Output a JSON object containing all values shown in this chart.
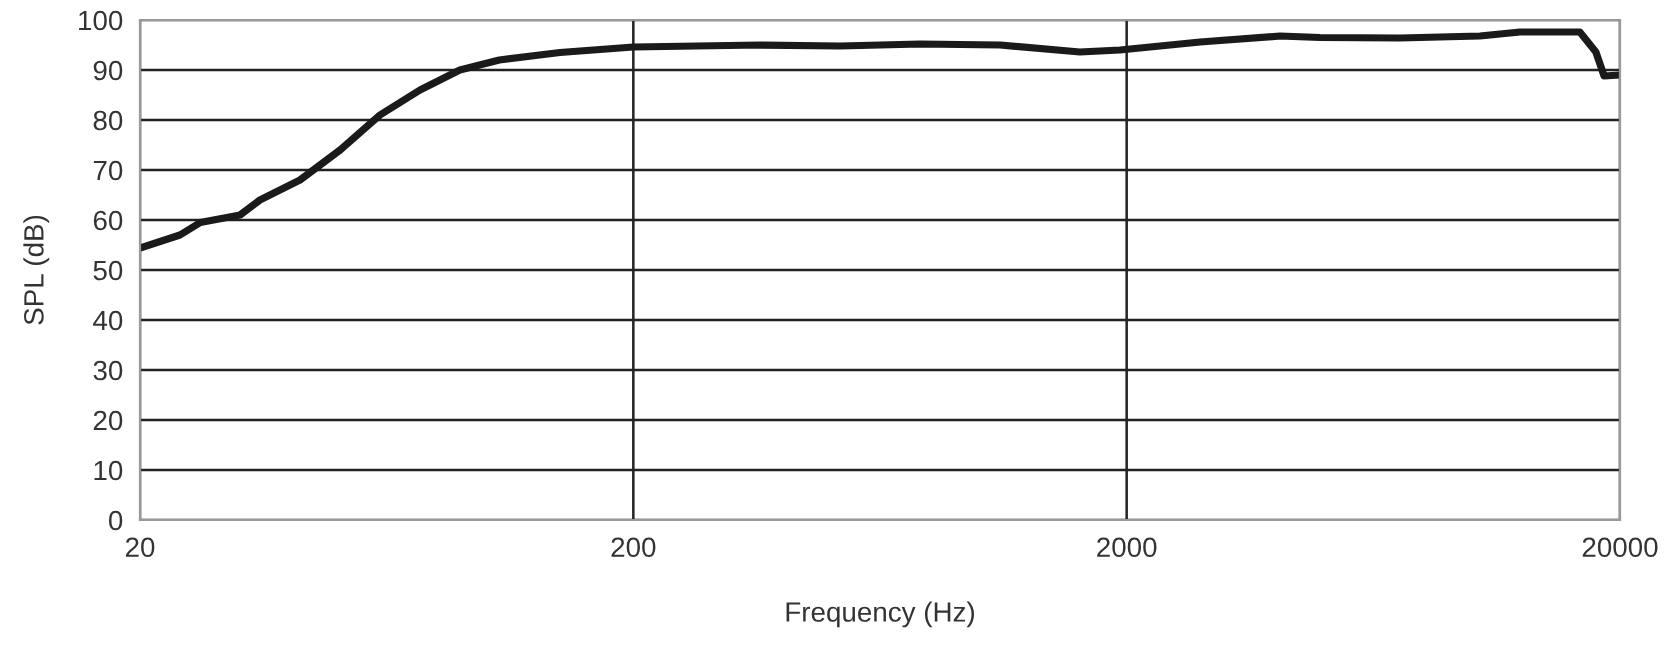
{
  "chart_data": {
    "type": "line",
    "xlabel": "Frequency (Hz)",
    "ylabel": "SPL (dB)",
    "log": "x",
    "xlim": [
      20,
      20000
    ],
    "xticks": [
      20,
      200,
      2000,
      20000
    ],
    "ylim": [
      0,
      100
    ],
    "yticks": [
      0,
      10,
      20,
      30,
      40,
      50,
      60,
      70,
      80,
      90,
      100
    ],
    "grid": true,
    "line_style": "solid",
    "marker": "none",
    "series": [
      {
        "color": "#1a1a1a",
        "x": [
          20,
          24.1,
          26.5,
          31.9,
          35,
          42.2,
          50.9,
          61.3,
          73.9,
          89,
          107,
          142,
          200,
          361,
          525,
          762,
          1108,
          1608,
          1938,
          2818,
          4092,
          4932,
          7160,
          10400,
          12540,
          16580,
          17870,
          18570,
          20000
        ],
        "values": [
          54.4,
          57,
          59.5,
          61,
          64,
          68,
          74,
          81,
          86,
          90,
          92,
          93.5,
          94.6,
          95,
          94.8,
          95.2,
          95,
          93.6,
          94,
          95.6,
          96.8,
          96.5,
          96.4,
          96.8,
          97.6,
          97.6,
          93.6,
          88.8,
          89
        ]
      }
    ]
  }
}
